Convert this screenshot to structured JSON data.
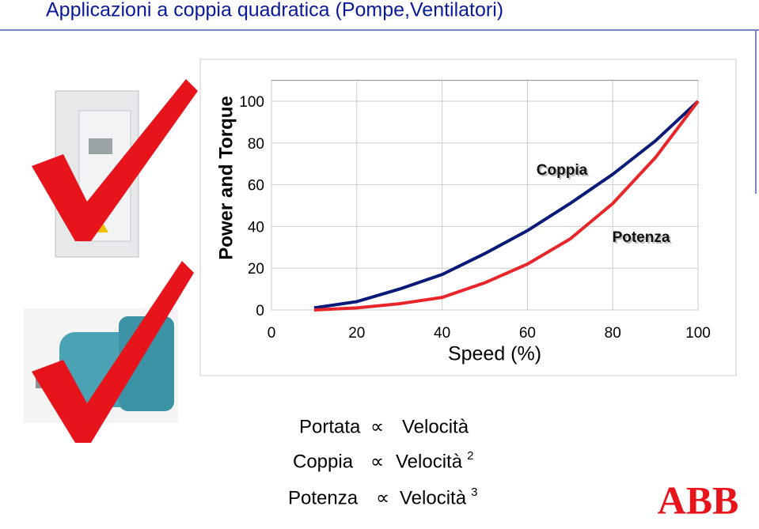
{
  "title": "Applicazioni a coppia quadratica (Pompe,Ventilatori)",
  "chart_data": {
    "type": "line",
    "x_label": "Speed (%)",
    "y_label": "Power and Torque",
    "x": [
      10,
      20,
      30,
      40,
      50,
      60,
      70,
      80,
      90,
      100
    ],
    "series": [
      {
        "name": "Coppia",
        "color": "#0a1a78",
        "values": [
          1,
          4,
          10,
          17,
          27,
          38,
          51,
          65,
          81,
          100
        ]
      },
      {
        "name": "Potenza",
        "color": "#e8262a",
        "values": [
          0,
          1,
          3,
          6,
          13,
          22,
          34,
          51,
          73,
          100
        ]
      }
    ],
    "xlim": [
      0,
      100
    ],
    "ylim": [
      0,
      110
    ],
    "xticks": [
      0,
      20,
      40,
      60,
      80,
      100
    ],
    "yticks": [
      0,
      20,
      40,
      60,
      80,
      100
    ],
    "grid": true
  },
  "relations": [
    {
      "left": "Portata",
      "symbol": "∝",
      "right": "Velocità"
    },
    {
      "left": "Coppia",
      "symbol": "∝",
      "right": "Velocità",
      "exponent": "2"
    },
    {
      "left": "Potenza",
      "symbol": "∝",
      "right": "Velocità",
      "exponent": "3"
    }
  ],
  "logo": "ABB"
}
